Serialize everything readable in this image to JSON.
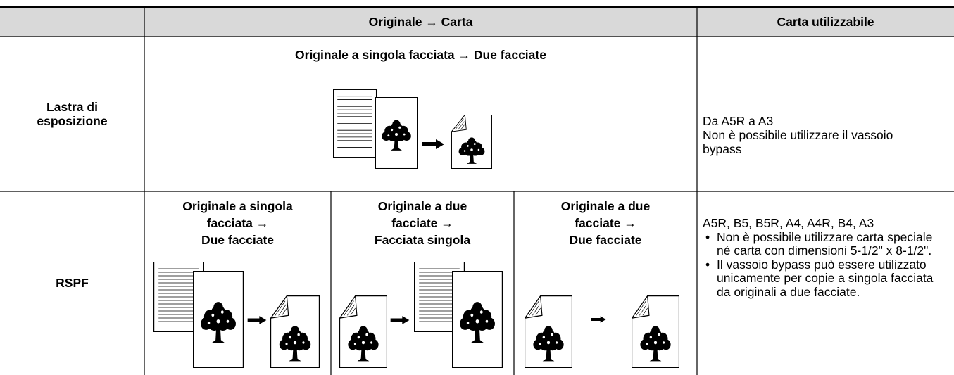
{
  "table": {
    "header": {
      "mode": "Originale → Carta",
      "paper": "Carta utilizzabile"
    },
    "rows": [
      {
        "label": "Lastra di esposizione",
        "modes": [
          {
            "lines": [
              "Originale a singola facciata → Due facciate"
            ]
          }
        ],
        "paper": [
          "Da A5R a A3",
          "Non è possibile utilizzare il vassoio bypass"
        ]
      },
      {
        "label": "RSPF",
        "modes": [
          {
            "lines": [
              "Originale a singola",
              "facciata →",
              "Due facciate"
            ]
          },
          {
            "lines": [
              "Originale a due",
              "facciate →",
              "Facciata singola"
            ]
          },
          {
            "lines": [
              "Originale a due",
              "facciate →",
              "Due facciate"
            ]
          }
        ],
        "paper_intro": "A5R, B5, B5R, A4, A4R, B4, A3",
        "paper": [
          "Non è possibile utilizzare carta speciale né carta con dimensioni 5-1/2\" x 8-1/2\".",
          "Il vassoio bypass può essere utilizzato unicamente per copie a singola facciata da originali a due facciate."
        ]
      }
    ]
  }
}
